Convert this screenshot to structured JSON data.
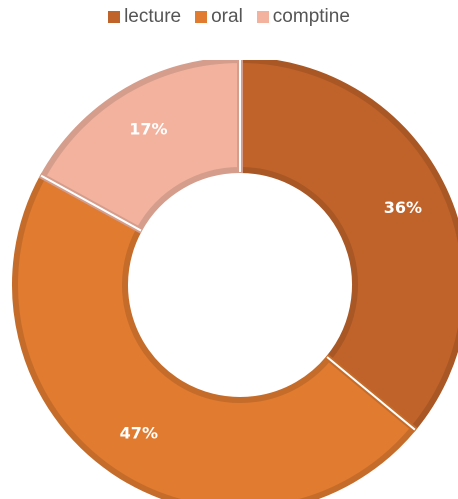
{
  "chart_data": {
    "type": "pie",
    "variant": "donut",
    "title": "",
    "series": [
      {
        "name": "lecture",
        "value": 36,
        "label": "36%",
        "color": "#C0632A"
      },
      {
        "name": "oral",
        "value": 47,
        "label": "47%",
        "color": "#E07B30"
      },
      {
        "name": "comptine",
        "value": 17,
        "label": "17%",
        "color": "#F2B29E"
      }
    ],
    "legend_position": "top"
  }
}
